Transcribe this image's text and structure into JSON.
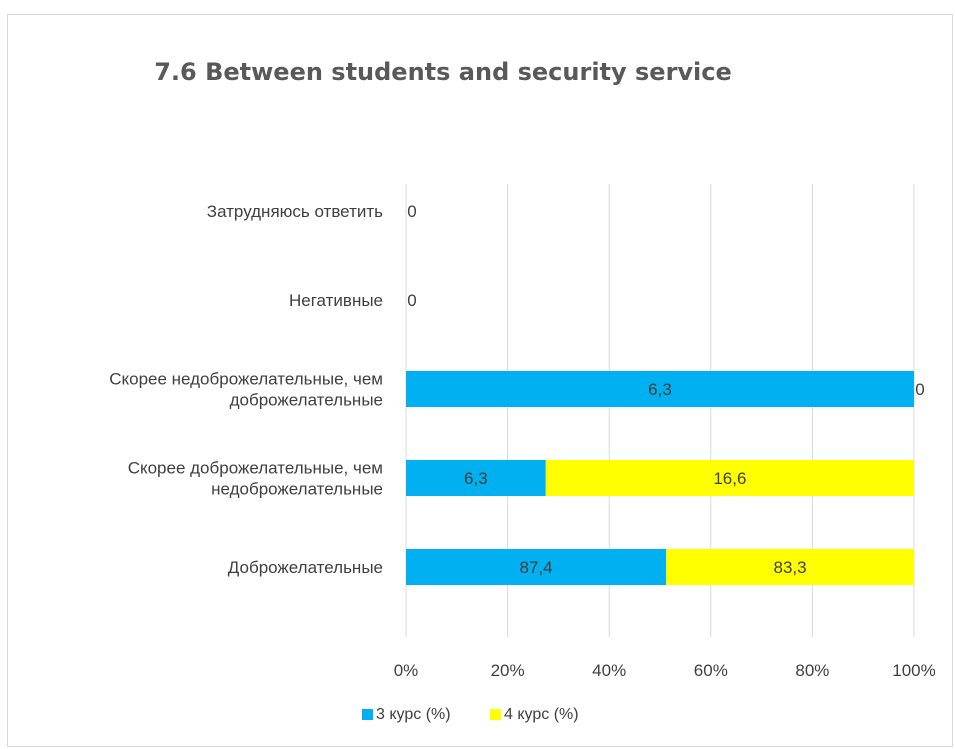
{
  "chart_data": {
    "type": "bar",
    "orientation": "horizontal",
    "stacking": "percent",
    "title": "7.6 Between students and security service",
    "categories": [
      "Затрудняюсь ответить",
      "Негативные",
      "Скорее недоброжелательные, чем доброжелательные",
      "Скорее доброжелательные, чем недоброжелательные",
      "Доброжелательные"
    ],
    "category_lines": [
      [
        "Затрудняюсь ответить"
      ],
      [
        "Негативные"
      ],
      [
        "Скорее недоброжелательные, чем",
        "доброжелательные"
      ],
      [
        "Скорее доброжелательные, чем",
        "недоброжелательные"
      ],
      [
        "Доброжелательные"
      ]
    ],
    "series": [
      {
        "name": "3 курс (%)",
        "color": "#00b0f0",
        "values": [
          0,
          0,
          6.3,
          6.3,
          87.4
        ],
        "labels": [
          "0",
          "0",
          "6,3",
          "6,3",
          "87,4"
        ]
      },
      {
        "name": "4 курс (%)",
        "color": "#ffff00",
        "values": [
          0,
          0,
          0,
          16.6,
          83.3
        ],
        "labels": [
          "",
          "",
          "0",
          "16,6",
          "83,3"
        ]
      }
    ],
    "xlim": [
      0,
      100
    ],
    "x_ticks": [
      "0%",
      "20%",
      "40%",
      "60%",
      "80%",
      "100%"
    ],
    "grid": "vertical",
    "legend": "bottom"
  }
}
